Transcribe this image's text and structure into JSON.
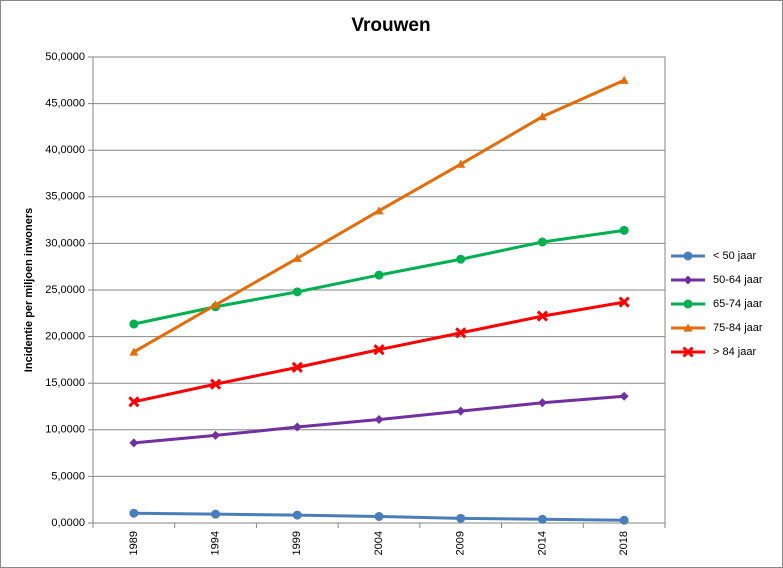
{
  "chart_data": {
    "type": "line",
    "title": "Vrouwen",
    "y_label": "Incidentie per miljoen inwoners",
    "categories": [
      "1989",
      "1994",
      "1999",
      "2004",
      "2009",
      "2014",
      "2018"
    ],
    "ylim": [
      0,
      50
    ],
    "yticks": [
      {
        "value": 0,
        "label": "0,0000"
      },
      {
        "value": 5,
        "label": "5,0000"
      },
      {
        "value": 10,
        "label": "10,0000"
      },
      {
        "value": 15,
        "label": "15,0000"
      },
      {
        "value": 20,
        "label": "20,0000"
      },
      {
        "value": 25,
        "label": "25,0000"
      },
      {
        "value": 30,
        "label": "30,0000"
      },
      {
        "value": 35,
        "label": "35,0000"
      },
      {
        "value": 40,
        "label": "40,0000"
      },
      {
        "value": 45,
        "label": "45,0000"
      },
      {
        "value": 50,
        "label": "50,0000"
      }
    ],
    "grid": true,
    "legend": "right",
    "series": [
      {
        "name": "< 50 jaar",
        "color": "#4a7ebb",
        "marker": "circle",
        "values": [
          1.05,
          0.95,
          0.85,
          0.7,
          0.5,
          0.4,
          0.3
        ]
      },
      {
        "name": "50-64 jaar",
        "color": "#7030a0",
        "marker": "diamond",
        "values": [
          8.6,
          9.4,
          10.3,
          11.1,
          12.0,
          12.9,
          13.6
        ]
      },
      {
        "name": "65-74 jaar",
        "color": "#00b050",
        "marker": "circle",
        "values": [
          21.35,
          23.2,
          24.8,
          26.6,
          28.3,
          30.15,
          31.4
        ]
      },
      {
        "name": "75-84 jaar",
        "color": "#e46c0a",
        "marker": "triangle",
        "values": [
          18.35,
          23.4,
          28.4,
          33.5,
          38.5,
          43.6,
          47.5
        ]
      },
      {
        "name": "> 84 jaar",
        "color": "#ff0000",
        "marker": "x",
        "values": [
          13.0,
          14.9,
          16.7,
          18.6,
          20.4,
          22.2,
          23.7
        ]
      }
    ]
  }
}
